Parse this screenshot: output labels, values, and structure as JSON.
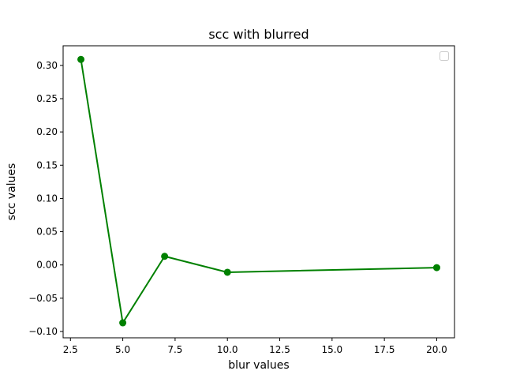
{
  "chart_data": {
    "type": "line",
    "title": "scc with blurred",
    "xlabel": "blur values",
    "ylabel": "scc values",
    "xlim": [
      2.15,
      20.85
    ],
    "ylim": [
      -0.1095,
      0.3295
    ],
    "xticks": [
      2.5,
      5.0,
      7.5,
      10.0,
      12.5,
      15.0,
      17.5,
      20.0
    ],
    "xtick_labels": [
      "2.5",
      "5.0",
      "7.5",
      "10.0",
      "12.5",
      "15.0",
      "17.5",
      "20.0"
    ],
    "yticks": [
      -0.1,
      -0.05,
      0.0,
      0.05,
      0.1,
      0.15,
      0.2,
      0.25,
      0.3
    ],
    "ytick_labels": [
      "−0.10",
      "−0.05",
      "0.00",
      "0.05",
      "0.10",
      "0.15",
      "0.20",
      "0.25",
      "0.30"
    ],
    "grid": false,
    "legend": "top-right",
    "legend_entries": [],
    "colors": {
      "series": "#008000",
      "axes": "#000000",
      "background": "#ffffff"
    },
    "series": [
      {
        "marker": "circle",
        "x": [
          3,
          5,
          7,
          10,
          20
        ],
        "y": [
          0.309,
          -0.087,
          0.013,
          -0.011,
          -0.004
        ]
      }
    ]
  }
}
